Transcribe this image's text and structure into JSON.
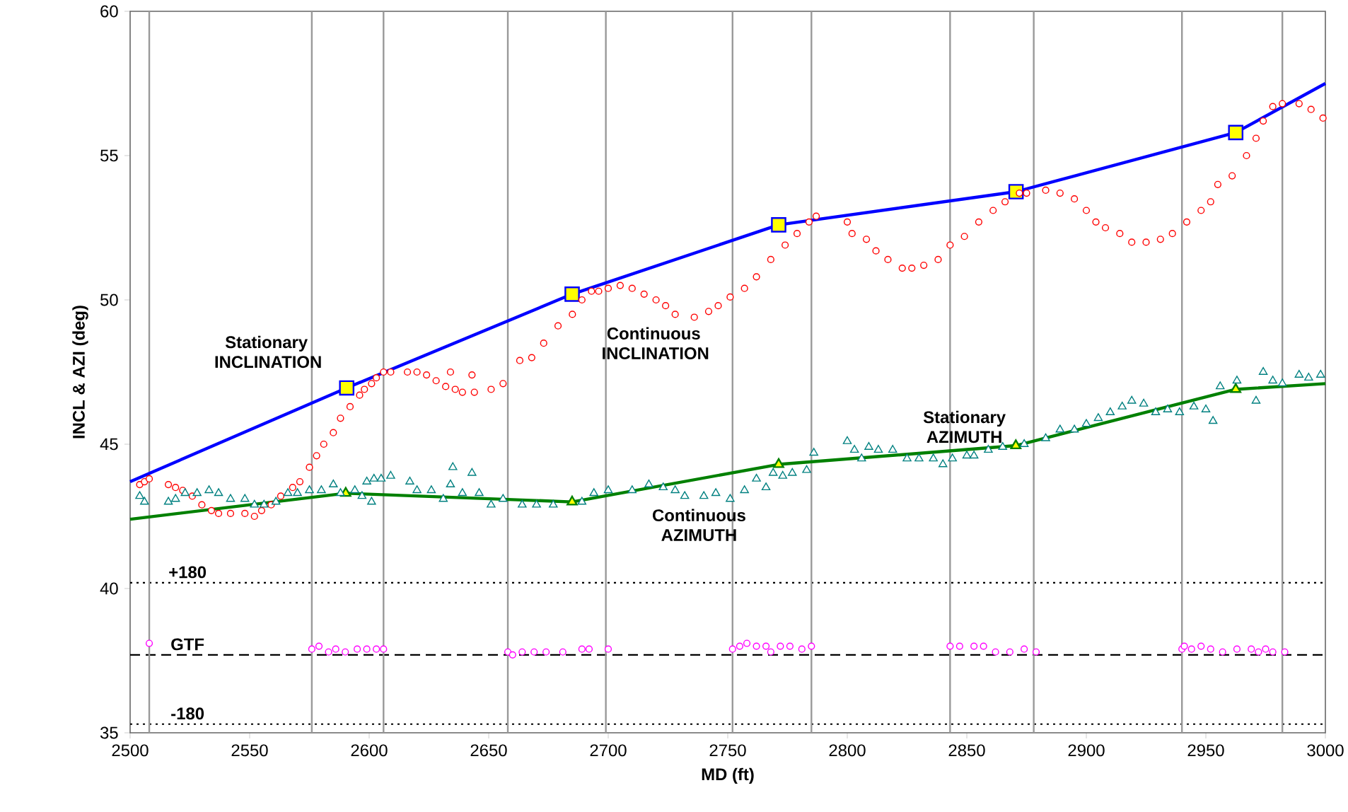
{
  "chart_data": {
    "type": "scatter",
    "xlabel": "MD  (ft)",
    "ylabel": "INCL & AZI (deg)",
    "xlim": [
      2500,
      3000
    ],
    "ylim": [
      35,
      60
    ],
    "xticks": [
      2500,
      2550,
      2600,
      2650,
      2700,
      2750,
      2800,
      2850,
      2900,
      2950,
      3000
    ],
    "yticks": [
      35,
      40,
      45,
      50,
      55,
      60
    ],
    "series": [
      {
        "type": "line",
        "color": "#0000ff",
        "x": [
          2500,
          2590.6,
          2684.9,
          2771.3,
          2870.6,
          2962.5,
          3000
        ],
        "values": [
          43.7,
          46.95,
          50.2,
          52.6,
          53.75,
          55.8,
          57.5
        ]
      },
      {
        "marker": "square",
        "color": "#ffff00",
        "x": [
          2590.6,
          2684.9,
          2771.3,
          2870.6,
          2962.5
        ],
        "values": [
          46.95,
          50.2,
          52.6,
          53.75,
          55.8
        ]
      },
      {
        "type": "line",
        "color": "#008000",
        "x": [
          2500,
          2590.2,
          2684.9,
          2771.3,
          2870.5,
          2962.5,
          3000
        ],
        "values": [
          42.4,
          43.3,
          43.0,
          44.3,
          44.95,
          46.9,
          47.1
        ]
      },
      {
        "marker": "triangle",
        "color": "#ffff00",
        "x": [
          2590.2,
          2684.9,
          2771.3,
          2870.5,
          2962.5
        ],
        "values": [
          43.3,
          43.0,
          44.3,
          44.95,
          46.9
        ]
      },
      {
        "marker": "circle",
        "color": "#ff0000",
        "x": [
          2504,
          2506,
          2508,
          2516,
          2519,
          2522,
          2526,
          2530,
          2534,
          2537,
          2542,
          2548,
          2552,
          2555,
          2559,
          2563,
          2568,
          2571,
          2575,
          2578,
          2581,
          2585,
          2588,
          2592,
          2596,
          2598,
          2601,
          2603,
          2606,
          2609,
          2616,
          2620,
          2624,
          2628,
          2632,
          2634,
          2636,
          2639,
          2643,
          2644,
          2651,
          2656,
          2663,
          2668,
          2673,
          2679,
          2685,
          2689,
          2693,
          2696,
          2700,
          2705,
          2710,
          2715,
          2720,
          2724,
          2728,
          2736,
          2742,
          2746,
          2751,
          2757,
          2762,
          2768,
          2774,
          2779,
          2784,
          2787,
          2800,
          2802,
          2808,
          2812,
          2817,
          2823,
          2827,
          2832,
          2838,
          2843,
          2849,
          2855,
          2861,
          2866,
          2872,
          2875,
          2883,
          2889,
          2895,
          2900,
          2904,
          2908,
          2914,
          2919,
          2925,
          2931,
          2936,
          2942,
          2948,
          2952,
          2955,
          2961,
          2967,
          2971,
          2974,
          2978,
          2982,
          2989,
          2994,
          2999
        ],
        "values": [
          43.6,
          43.7,
          43.8,
          43.6,
          43.5,
          43.4,
          43.2,
          42.9,
          42.7,
          42.6,
          42.6,
          42.6,
          42.5,
          42.7,
          42.9,
          43.2,
          43.5,
          43.7,
          44.2,
          44.6,
          45.0,
          45.4,
          45.9,
          46.3,
          46.7,
          46.9,
          47.1,
          47.3,
          47.5,
          47.5,
          47.5,
          47.5,
          47.4,
          47.2,
          47.0,
          47.5,
          46.9,
          46.8,
          47.4,
          46.8,
          46.9,
          47.1,
          47.9,
          48.0,
          48.5,
          49.1,
          49.5,
          50.0,
          50.3,
          50.3,
          50.4,
          50.5,
          50.4,
          50.2,
          50.0,
          49.8,
          49.5,
          49.4,
          49.6,
          49.8,
          50.1,
          50.4,
          50.8,
          51.4,
          51.9,
          52.3,
          52.7,
          52.9,
          52.7,
          52.3,
          52.1,
          51.7,
          51.4,
          51.1,
          51.1,
          51.2,
          51.4,
          51.9,
          52.2,
          52.7,
          53.1,
          53.4,
          53.7,
          53.7,
          53.8,
          53.7,
          53.5,
          53.1,
          52.7,
          52.5,
          52.3,
          52.0,
          52.0,
          52.1,
          52.3,
          52.7,
          53.1,
          53.4,
          54.0,
          54.3,
          55.0,
          55.6,
          56.2,
          56.7,
          56.8,
          56.8,
          56.6,
          56.3
        ]
      },
      {
        "marker": "triangle",
        "color": "#008080",
        "x": [
          2504,
          2506,
          2516,
          2519,
          2523,
          2528,
          2533,
          2537,
          2542,
          2548,
          2552,
          2556,
          2561,
          2566,
          2570,
          2575,
          2580,
          2585,
          2588,
          2594,
          2597,
          2599,
          2601,
          2602,
          2605,
          2609,
          2617,
          2620,
          2626,
          2631,
          2634,
          2635,
          2639,
          2643,
          2646,
          2651,
          2656,
          2664,
          2670,
          2677,
          2689,
          2694,
          2700,
          2710,
          2717,
          2723,
          2728,
          2732,
          2740,
          2745,
          2751,
          2757,
          2762,
          2766,
          2769,
          2773,
          2777,
          2783,
          2786,
          2800,
          2803,
          2806,
          2809,
          2813,
          2819,
          2825,
          2830,
          2836,
          2840,
          2844,
          2850,
          2853,
          2859,
          2865,
          2874,
          2883,
          2889,
          2895,
          2900,
          2905,
          2910,
          2915,
          2919,
          2924,
          2929,
          2934,
          2939,
          2945,
          2950,
          2953,
          2956,
          2963,
          2971,
          2974,
          2978,
          2982,
          2989,
          2993,
          2998
        ],
        "values": [
          43.2,
          43.0,
          43.0,
          43.1,
          43.3,
          43.3,
          43.4,
          43.3,
          43.1,
          43.1,
          42.9,
          42.9,
          43.0,
          43.3,
          43.3,
          43.4,
          43.4,
          43.6,
          43.3,
          43.4,
          43.2,
          43.7,
          43.0,
          43.8,
          43.8,
          43.9,
          43.7,
          43.4,
          43.4,
          43.1,
          43.6,
          44.2,
          43.3,
          44.0,
          43.3,
          42.9,
          43.1,
          42.9,
          42.9,
          42.9,
          43.0,
          43.3,
          43.4,
          43.4,
          43.6,
          43.5,
          43.4,
          43.2,
          43.2,
          43.3,
          43.1,
          43.4,
          43.8,
          43.5,
          44.0,
          43.9,
          44.0,
          44.1,
          44.7,
          45.1,
          44.8,
          44.5,
          44.9,
          44.8,
          44.8,
          44.5,
          44.5,
          44.5,
          44.3,
          44.5,
          44.6,
          44.6,
          44.8,
          44.9,
          45.0,
          45.2,
          45.5,
          45.5,
          45.7,
          45.9,
          46.1,
          46.3,
          46.5,
          46.4,
          46.1,
          46.2,
          46.1,
          46.3,
          46.2,
          45.8,
          47.0,
          47.2,
          46.5,
          47.5,
          47.2,
          47.1,
          47.4,
          47.3,
          47.4
        ]
      },
      {
        "marker": "circle",
        "color": "#ff00ff",
        "x": [
          2508,
          2576,
          2579,
          2583,
          2586,
          2590,
          2595,
          2599,
          2603,
          2606,
          2658,
          2660,
          2664,
          2669,
          2674,
          2681,
          2689,
          2692,
          2700,
          2752,
          2755,
          2758,
          2762,
          2766,
          2768,
          2772,
          2776,
          2781,
          2785,
          2843,
          2847,
          2853,
          2857,
          2862,
          2868,
          2874,
          2879,
          2940,
          2941,
          2944,
          2948,
          2952,
          2957,
          2963,
          2969,
          2972,
          2975,
          2978,
          2983
        ],
        "values": [
          38.1,
          37.9,
          38.0,
          37.8,
          37.9,
          37.8,
          37.9,
          37.9,
          37.9,
          37.9,
          37.8,
          37.7,
          37.8,
          37.8,
          37.8,
          37.8,
          37.9,
          37.9,
          37.9,
          37.9,
          38.0,
          38.1,
          38.0,
          38.0,
          37.8,
          38.0,
          38.0,
          37.9,
          38.0,
          38.0,
          38.0,
          38.0,
          38.0,
          37.8,
          37.8,
          37.9,
          37.8,
          37.9,
          38.0,
          37.9,
          38.0,
          37.9,
          37.8,
          37.9,
          37.9,
          37.8,
          37.9,
          37.8,
          37.8
        ]
      }
    ],
    "ref_lines": [
      {
        "axis": "y",
        "value": 40.2,
        "line_style": "dotted",
        "color": "#000000"
      },
      {
        "axis": "y",
        "value": 37.7,
        "line_style": "dashed",
        "color": "#000000"
      },
      {
        "axis": "y",
        "value": 35.3,
        "line_style": "dotted",
        "color": "#000000"
      },
      {
        "axis": "x",
        "value": 2508,
        "color": "#999999"
      },
      {
        "axis": "x",
        "value": 2576,
        "color": "#999999"
      },
      {
        "axis": "x",
        "value": 2606,
        "color": "#999999"
      },
      {
        "axis": "x",
        "value": 2658,
        "color": "#999999"
      },
      {
        "axis": "x",
        "value": 2699,
        "color": "#999999"
      },
      {
        "axis": "x",
        "value": 2752,
        "color": "#999999"
      },
      {
        "axis": "x",
        "value": 2785,
        "color": "#999999"
      },
      {
        "axis": "x",
        "value": 2843,
        "color": "#999999"
      },
      {
        "axis": "x",
        "value": 2878,
        "color": "#999999"
      },
      {
        "axis": "x",
        "value": 2940,
        "color": "#999999"
      },
      {
        "axis": "x",
        "value": 2982,
        "color": "#999999"
      }
    ],
    "annotations": [
      "Stationary INCLINATION",
      "Continuous INCLINATION",
      "Stationary AZIMUTH",
      "Continuous AZIMUTH",
      "+180",
      "GTF",
      "-180"
    ]
  }
}
